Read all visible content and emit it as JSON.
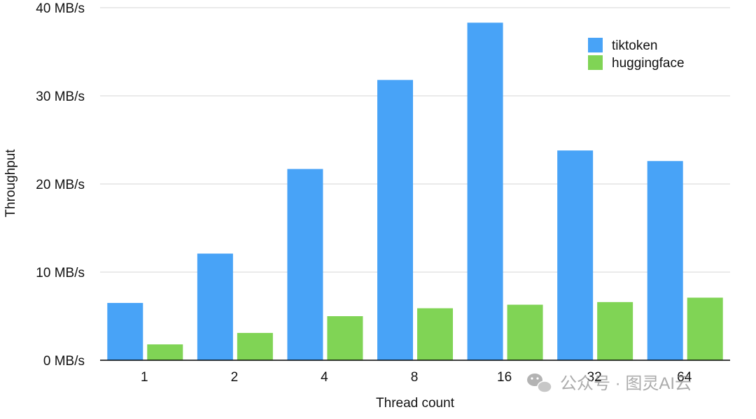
{
  "chart_data": {
    "type": "bar",
    "title": "",
    "xlabel": "Thread count",
    "ylabel": "Throughput",
    "categories": [
      "1",
      "2",
      "4",
      "8",
      "16",
      "32",
      "64"
    ],
    "series": [
      {
        "name": "tiktoken",
        "color": "#48a3f7",
        "values": [
          6.5,
          12.1,
          21.7,
          31.8,
          38.3,
          23.8,
          22.6
        ]
      },
      {
        "name": "huggingface",
        "color": "#80d455",
        "values": [
          1.8,
          3.1,
          5.0,
          5.9,
          6.3,
          6.6,
          7.1
        ]
      }
    ],
    "ylim": [
      0,
      40
    ],
    "yticks": [
      {
        "value": 0,
        "label": "0 MB/s"
      },
      {
        "value": 10,
        "label": "10 MB/s"
      },
      {
        "value": 20,
        "label": "20 MB/s"
      },
      {
        "value": 30,
        "label": "30 MB/s"
      },
      {
        "value": 40,
        "label": "40 MB/s"
      }
    ],
    "grid": true,
    "legend_position": "top-right"
  },
  "watermark": {
    "text": "公众号 · 图灵AI云",
    "icon": "wechat-icon"
  }
}
